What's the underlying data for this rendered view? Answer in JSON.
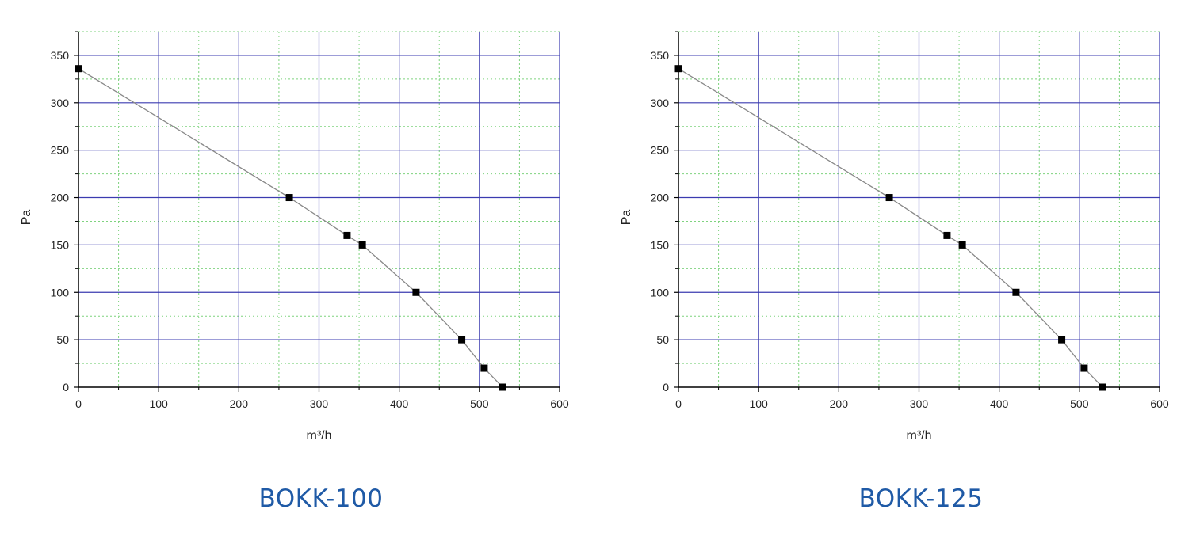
{
  "charts": [
    {
      "caption": "BOKK-100"
    },
    {
      "caption": "BOKK-125"
    }
  ],
  "chart_data": [
    {
      "type": "line",
      "caption": "BOKK-100",
      "xlabel": "m³/h",
      "ylabel": "Pa",
      "xlim": [
        0,
        600
      ],
      "ylim": [
        0,
        375
      ],
      "xticks": [
        0,
        100,
        200,
        300,
        400,
        500,
        600
      ],
      "yticks": [
        0,
        50,
        100,
        150,
        200,
        250,
        300,
        350
      ],
      "grid": true,
      "series": [
        {
          "x": [
            0,
            263,
            335,
            354,
            421,
            478,
            506,
            529
          ],
          "y": [
            336,
            200,
            160,
            150,
            100,
            50,
            20,
            0
          ]
        }
      ],
      "colors": {
        "major_grid": "#3b3bb0",
        "minor_grid": "#7fd37f",
        "line": "#888888",
        "marker": "#000000"
      }
    },
    {
      "type": "line",
      "caption": "BOKK-125",
      "xlabel": "m³/h",
      "ylabel": "Pa",
      "xlim": [
        0,
        600
      ],
      "ylim": [
        0,
        375
      ],
      "xticks": [
        0,
        100,
        200,
        300,
        400,
        500,
        600
      ],
      "yticks": [
        0,
        50,
        100,
        150,
        200,
        250,
        300,
        350
      ],
      "grid": true,
      "series": [
        {
          "x": [
            0,
            263,
            335,
            354,
            421,
            478,
            506,
            529
          ],
          "y": [
            336,
            200,
            160,
            150,
            100,
            50,
            20,
            0
          ]
        }
      ],
      "colors": {
        "major_grid": "#3b3bb0",
        "minor_grid": "#7fd37f",
        "line": "#888888",
        "marker": "#000000"
      }
    }
  ]
}
